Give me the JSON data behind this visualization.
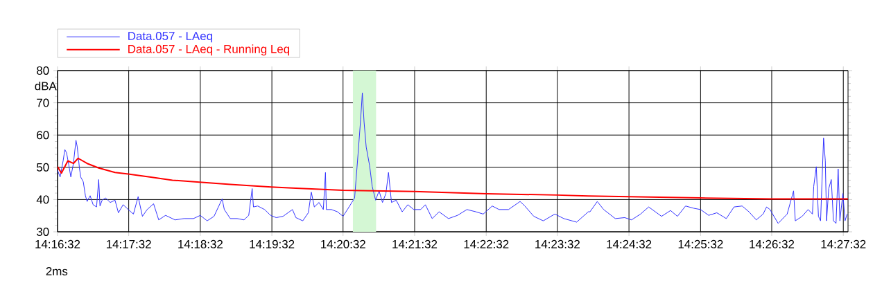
{
  "chart_data": {
    "type": "line",
    "ylabel": "dBA",
    "xlim": [
      14.2756,
      14.46
    ],
    "ylim": [
      30,
      80
    ],
    "xticks": [
      {
        "value": 14.2756,
        "label": "14:16:32"
      },
      {
        "value": 14.2922,
        "label": "14:17:32"
      },
      {
        "value": 14.3089,
        "label": "14:18:32"
      },
      {
        "value": 14.3256,
        "label": "14:19:32"
      },
      {
        "value": 14.3422,
        "label": "14:20:32"
      },
      {
        "value": 14.3589,
        "label": "14:21:32"
      },
      {
        "value": 14.3756,
        "label": "14:22:32"
      },
      {
        "value": 14.3922,
        "label": "14:23:32"
      },
      {
        "value": 14.4089,
        "label": "14:24:32"
      },
      {
        "value": 14.4256,
        "label": "14:25:32"
      },
      {
        "value": 14.4422,
        "label": "14:26:32"
      },
      {
        "value": 14.4589,
        "label": "14:27:32"
      }
    ],
    "yticks": [
      30,
      40,
      50,
      60,
      70,
      80
    ],
    "grid": true,
    "legend": "top",
    "marker": "none",
    "line_style": "solid",
    "series": [
      {
        "name": "Data.057 - LAeq",
        "color": "#3333ff",
        "x": [
          14.2756,
          14.2762,
          14.2769,
          14.2773,
          14.2777,
          14.2782,
          14.2787,
          14.2793,
          14.2799,
          14.2802,
          14.2807,
          14.281,
          14.2816,
          14.2821,
          14.2825,
          14.2832,
          14.2839,
          14.2847,
          14.2852,
          14.2855,
          14.286,
          14.2868,
          14.2879,
          14.289,
          14.2898,
          14.2909,
          14.2921,
          14.2933,
          14.2944,
          14.2954,
          14.2965,
          14.298,
          14.2992,
          14.3008,
          14.303,
          14.3051,
          14.3073,
          14.3089,
          14.3105,
          14.3121,
          14.314,
          14.3145,
          14.3159,
          14.3175,
          14.3191,
          14.3202,
          14.321,
          14.3213,
          14.3223,
          14.3239,
          14.3253,
          14.3266,
          14.3282,
          14.3304,
          14.3312,
          14.3328,
          14.3341,
          14.3348,
          14.3355,
          14.3366,
          14.3376,
          14.3381,
          14.3383,
          14.3395,
          14.3409,
          14.3422,
          14.3436,
          14.3449,
          14.3457,
          14.3463,
          14.3467,
          14.3471,
          14.3476,
          14.3484,
          14.349,
          14.3498,
          14.3506,
          14.3514,
          14.3522,
          14.3528,
          14.3535,
          14.3546,
          14.356,
          14.3573,
          14.3587,
          14.3603,
          14.3614,
          14.363,
          14.3646,
          14.3668,
          14.3689,
          14.3711,
          14.3732,
          14.3749,
          14.377,
          14.3786,
          14.3808,
          14.3835,
          14.3846,
          14.3867,
          14.3889,
          14.3916,
          14.3937,
          14.3967,
          14.3994,
          14.3998,
          14.4015,
          14.403,
          14.4057,
          14.4079,
          14.4095,
          14.4116,
          14.4135,
          14.4165,
          14.4186,
          14.4202,
          14.4221,
          14.424,
          14.4256,
          14.4275,
          14.4294,
          14.4316,
          14.4334,
          14.4353,
          14.4369,
          14.4386,
          14.4402,
          14.441,
          14.4418,
          14.4437,
          14.4458,
          14.4473,
          14.4477,
          14.4493,
          14.4507,
          14.4517,
          14.452,
          14.4526,
          14.4531,
          14.4536,
          14.4543,
          14.4547,
          14.455,
          14.4555,
          14.4561,
          14.4566,
          14.4572,
          14.4577,
          14.4581,
          14.4588,
          14.4593,
          14.4598
        ],
        "values": [
          49.1,
          47.0,
          52.0,
          55.5,
          54.5,
          50.9,
          47.0,
          51.2,
          58.4,
          56.3,
          49.8,
          47.0,
          45.5,
          41.2,
          39.4,
          41.2,
          38.4,
          37.7,
          46.2,
          38.0,
          39.8,
          40.5,
          39.1,
          39.8,
          35.9,
          38.4,
          36.9,
          35.5,
          40.9,
          34.8,
          36.9,
          38.7,
          33.7,
          35.1,
          33.7,
          34.1,
          34.1,
          35.1,
          33.4,
          34.8,
          40.2,
          36.9,
          34.1,
          34.1,
          33.7,
          35.1,
          43.4,
          37.7,
          38.0,
          36.9,
          35.1,
          34.4,
          34.8,
          36.9,
          34.4,
          33.4,
          35.9,
          42.3,
          37.7,
          39.1,
          36.9,
          48.4,
          36.9,
          36.9,
          36.2,
          34.8,
          37.7,
          40.5,
          54.1,
          64.8,
          73.1,
          64.1,
          56.3,
          50.5,
          44.1,
          39.8,
          42.7,
          39.1,
          41.9,
          48.4,
          39.1,
          39.8,
          36.2,
          38.4,
          36.9,
          36.9,
          38.4,
          34.1,
          36.2,
          34.1,
          35.1,
          36.9,
          36.2,
          35.5,
          38.0,
          36.9,
          36.9,
          39.4,
          38.0,
          34.8,
          33.4,
          35.5,
          34.1,
          33.0,
          36.2,
          36.2,
          39.4,
          36.9,
          34.1,
          34.4,
          33.7,
          35.5,
          37.7,
          34.8,
          36.6,
          34.8,
          38.0,
          37.3,
          36.9,
          35.1,
          35.9,
          34.1,
          37.7,
          38.0,
          36.2,
          33.7,
          35.5,
          37.7,
          36.9,
          32.6,
          35.5,
          42.7,
          33.4,
          34.8,
          36.9,
          35.5,
          44.1,
          50.2,
          34.8,
          33.4,
          59.1,
          52.0,
          33.4,
          43.4,
          46.2,
          33.4,
          32.6,
          49.5,
          33.4,
          41.9,
          33.4,
          35.5
        ]
      },
      {
        "name": "Data.057 - LAeq - Running Leq",
        "color": "#ff0000",
        "x": [
          14.2756,
          14.2765,
          14.278,
          14.2793,
          14.2804,
          14.2825,
          14.2852,
          14.289,
          14.2921,
          14.2971,
          14.3024,
          14.3087,
          14.3159,
          14.3254,
          14.3312,
          14.3422,
          14.3588,
          14.3756,
          14.3921,
          14.3994,
          14.4089,
          14.4256,
          14.4422,
          14.46
        ],
        "values": [
          50.2,
          48.2,
          52.0,
          51.2,
          52.8,
          51.2,
          49.8,
          48.4,
          47.9,
          47.0,
          46.0,
          45.4,
          44.7,
          43.9,
          43.5,
          42.9,
          42.5,
          41.8,
          41.4,
          41.1,
          40.9,
          40.5,
          40.2,
          40.2
        ]
      }
    ],
    "bands": [
      {
        "axis": "x",
        "from": 14.3445,
        "to": 14.3499,
        "color": "#d4f7d4"
      }
    ],
    "annotations": [
      "2ms"
    ]
  }
}
